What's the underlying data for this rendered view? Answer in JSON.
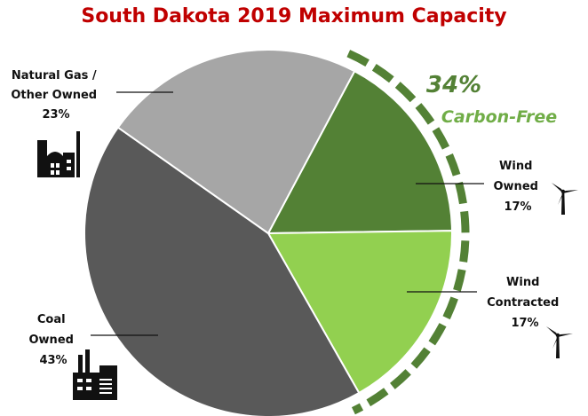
{
  "chart_data": {
    "type": "pie",
    "title": "South Dakota 2019 Maximum Capacity",
    "slices": [
      {
        "name": "Wind Owned",
        "label_lines": [
          "Wind",
          "Owned"
        ],
        "pct_label": "17%",
        "value": 17,
        "color": "#538135"
      },
      {
        "name": "Wind Contracted",
        "label_lines": [
          "Wind",
          "Contracted"
        ],
        "pct_label": "17%",
        "value": 17,
        "color": "#92d050"
      },
      {
        "name": "Coal Owned",
        "label_lines": [
          "Coal",
          "Owned"
        ],
        "pct_label": "43%",
        "value": 43,
        "color": "#595959"
      },
      {
        "name": "Natural Gas / Other Owned",
        "label_lines": [
          "Natural Gas /",
          "Other Owned"
        ],
        "pct_label": "23%",
        "value": 23,
        "color": "#a6a6a6"
      }
    ],
    "annotation": {
      "percent": "34%",
      "text": "Carbon-Free",
      "color": "#538135",
      "highlight_color": "#70ad47"
    },
    "icons": [
      "factory-icon",
      "factory-icon",
      "wind-turbine-icon",
      "wind-turbine-icon"
    ]
  }
}
